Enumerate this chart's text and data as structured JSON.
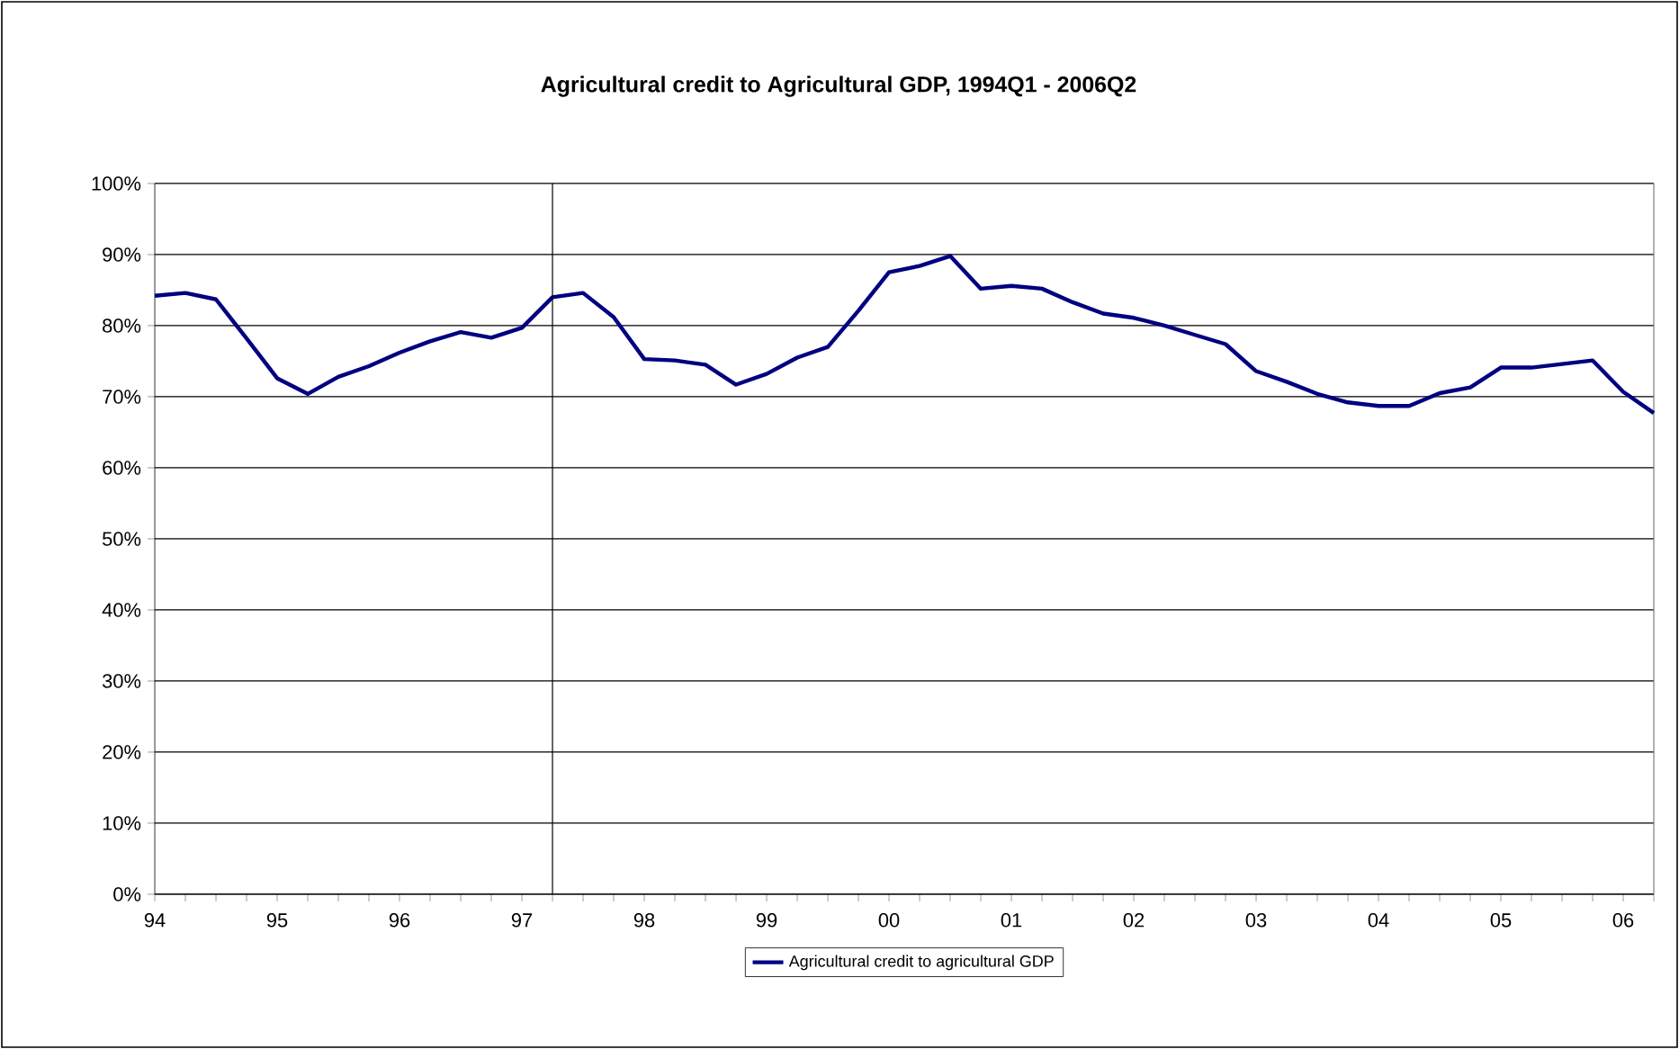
{
  "chart_data": {
    "type": "line",
    "title": "Agricultural credit to Agricultural GDP, 1994Q1 - 2006Q2",
    "x": [
      1994,
      1994.25,
      1994.5,
      1994.75,
      1995,
      1995.25,
      1995.5,
      1995.75,
      1996,
      1996.25,
      1996.5,
      1996.75,
      1997,
      1997.25,
      1997.5,
      1997.75,
      1998,
      1998.25,
      1998.5,
      1998.75,
      1999,
      1999.25,
      1999.5,
      1999.75,
      2000,
      2000.25,
      2000.5,
      2000.75,
      2001,
      2001.25,
      2001.5,
      2001.75,
      2002,
      2002.25,
      2002.5,
      2002.75,
      2003,
      2003.25,
      2003.5,
      2003.75,
      2004,
      2004.25,
      2004.5,
      2004.75,
      2005,
      2005.25,
      2005.5,
      2005.75,
      2006,
      2006.25
    ],
    "series": [
      {
        "name": "Agricultural credit to agricultural GDP",
        "color": "#000080",
        "values": [
          84.2,
          84.6,
          83.7,
          78.2,
          72.6,
          70.4,
          72.8,
          74.3,
          76.2,
          77.8,
          79.1,
          78.3,
          79.7,
          84.0,
          84.6,
          81.2,
          75.3,
          75.1,
          74.5,
          71.7,
          73.2,
          75.5,
          77.0,
          82.1,
          87.5,
          88.4,
          89.8,
          85.2,
          85.6,
          85.2,
          83.3,
          81.7,
          81.1,
          80.0,
          78.7,
          77.4,
          73.6,
          72.1,
          70.4,
          69.2,
          68.7,
          68.7,
          70.5,
          71.3,
          74.1,
          74.1,
          74.6,
          75.1,
          70.7,
          67.7
        ]
      }
    ],
    "xlim": [
      1994,
      2006.25
    ],
    "xticks": [
      {
        "value": 1994,
        "label": "94"
      },
      {
        "value": 1994.25,
        "label": null
      },
      {
        "value": 1994.5,
        "label": null
      },
      {
        "value": 1994.75,
        "label": null
      },
      {
        "value": 1995,
        "label": "95"
      },
      {
        "value": 1995.25,
        "label": null
      },
      {
        "value": 1995.5,
        "label": null
      },
      {
        "value": 1995.75,
        "label": null
      },
      {
        "value": 1996,
        "label": "96"
      },
      {
        "value": 1996.25,
        "label": null
      },
      {
        "value": 1996.5,
        "label": null
      },
      {
        "value": 1996.75,
        "label": null
      },
      {
        "value": 1997,
        "label": "97"
      },
      {
        "value": 1997.25,
        "label": null
      },
      {
        "value": 1997.5,
        "label": null
      },
      {
        "value": 1997.75,
        "label": null
      },
      {
        "value": 1998,
        "label": "98"
      },
      {
        "value": 1998.25,
        "label": null
      },
      {
        "value": 1998.5,
        "label": null
      },
      {
        "value": 1998.75,
        "label": null
      },
      {
        "value": 1999,
        "label": "99"
      },
      {
        "value": 1999.25,
        "label": null
      },
      {
        "value": 1999.5,
        "label": null
      },
      {
        "value": 1999.75,
        "label": null
      },
      {
        "value": 2000,
        "label": "00"
      },
      {
        "value": 2000.25,
        "label": null
      },
      {
        "value": 2000.5,
        "label": null
      },
      {
        "value": 2000.75,
        "label": null
      },
      {
        "value": 2001,
        "label": "01"
      },
      {
        "value": 2001.25,
        "label": null
      },
      {
        "value": 2001.5,
        "label": null
      },
      {
        "value": 2001.75,
        "label": null
      },
      {
        "value": 2002,
        "label": "02"
      },
      {
        "value": 2002.25,
        "label": null
      },
      {
        "value": 2002.5,
        "label": null
      },
      {
        "value": 2002.75,
        "label": null
      },
      {
        "value": 2003,
        "label": "03"
      },
      {
        "value": 2003.25,
        "label": null
      },
      {
        "value": 2003.5,
        "label": null
      },
      {
        "value": 2003.75,
        "label": null
      },
      {
        "value": 2004,
        "label": "04"
      },
      {
        "value": 2004.25,
        "label": null
      },
      {
        "value": 2004.5,
        "label": null
      },
      {
        "value": 2004.75,
        "label": null
      },
      {
        "value": 2005,
        "label": "05"
      },
      {
        "value": 2005.25,
        "label": null
      },
      {
        "value": 2005.5,
        "label": null
      },
      {
        "value": 2005.75,
        "label": null
      },
      {
        "value": 2006,
        "label": "06"
      },
      {
        "value": 2006.25,
        "label": null
      }
    ],
    "ylim": [
      0,
      100
    ],
    "yticks": [
      {
        "value": 0,
        "label": "0%"
      },
      {
        "value": 10,
        "label": "10%"
      },
      {
        "value": 20,
        "label": "20%"
      },
      {
        "value": 30,
        "label": "30%"
      },
      {
        "value": 40,
        "label": "40%"
      },
      {
        "value": 50,
        "label": "50%"
      },
      {
        "value": 60,
        "label": "60%"
      },
      {
        "value": 70,
        "label": "70%"
      },
      {
        "value": 80,
        "label": "80%"
      },
      {
        "value": 90,
        "label": "90%"
      },
      {
        "value": 100,
        "label": "100%"
      }
    ],
    "ref_lines": [
      {
        "axis": "x",
        "value": 1997.25,
        "color": "#000000"
      }
    ],
    "grid": "y",
    "legend": "bottom",
    "marker": "none",
    "line_style": "solid"
  }
}
